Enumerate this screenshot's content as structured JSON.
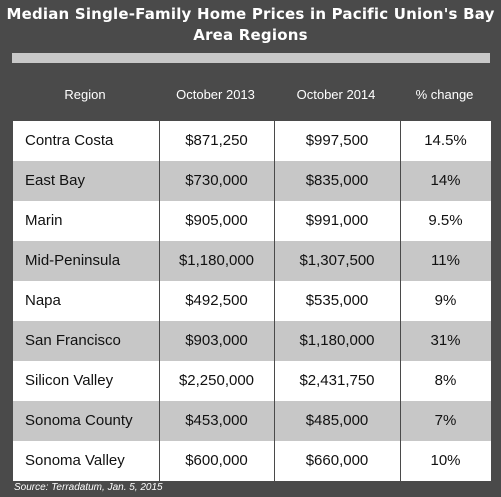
{
  "chart_data": {
    "type": "table",
    "title": "Median Single-Family Home Prices in Pacific Union's Bay Area Regions",
    "columns": [
      "Region",
      "October 2013",
      "October 2014",
      "% change"
    ],
    "rows": [
      [
        "Contra Costa",
        "$871,250",
        "$997,500",
        "14.5%"
      ],
      [
        "East Bay",
        "$730,000",
        "$835,000",
        "14%"
      ],
      [
        "Marin",
        "$905,000",
        "$991,000",
        "9.5%"
      ],
      [
        "Mid-Peninsula",
        "$1,180,000",
        "$1,307,500",
        "11%"
      ],
      [
        "Napa",
        "$492,500",
        "$535,000",
        "9%"
      ],
      [
        "San Francisco",
        "$903,000",
        "$1,180,000",
        "31%"
      ],
      [
        "Silicon Valley",
        "$2,250,000",
        "$2,431,750",
        "8%"
      ],
      [
        "Sonoma County",
        "$453,000",
        "$485,000",
        "7%"
      ],
      [
        "Sonoma Valley",
        "$600,000",
        "$660,000",
        "10%"
      ]
    ],
    "source": "Source: Terradatum, Jan. 5, 2015"
  },
  "colors": {
    "background": "#4a4a4a",
    "row_white": "#ffffff",
    "row_gray": "#c7c7c7",
    "title_bar": "#c8c8c8",
    "header_text": "#ffffff"
  }
}
